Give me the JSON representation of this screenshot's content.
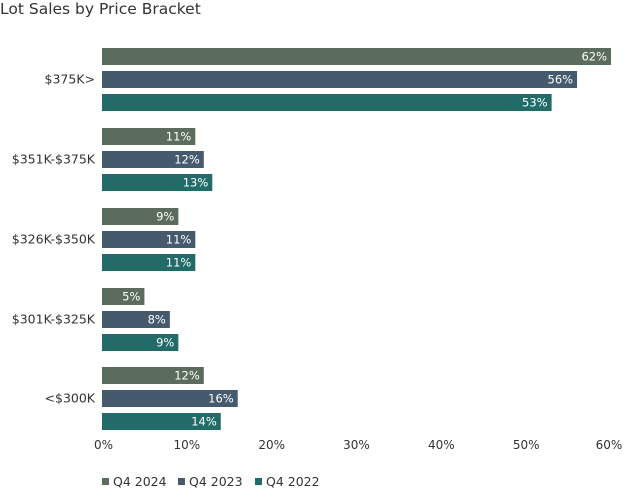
{
  "chart_data": {
    "type": "bar",
    "orientation": "horizontal",
    "title": "Lot Sales by Price Bracket",
    "xlabel": "",
    "ylabel": "",
    "xlim": [
      0,
      0.6
    ],
    "x_ticks": [
      0,
      0.1,
      0.2,
      0.3,
      0.4,
      0.5,
      0.6
    ],
    "x_tick_labels": [
      "0%",
      "10%",
      "20%",
      "30%",
      "40%",
      "50%",
      "60%"
    ],
    "categories": [
      "$375K>",
      "$351K-$375K",
      "$326K-$350K",
      "$301K-$325K",
      "<$300K"
    ],
    "series": [
      {
        "name": "Q4 2024",
        "color": "#5b6b5c",
        "values": [
          0.62,
          0.11,
          0.09,
          0.05,
          0.12
        ],
        "labels": [
          "62%",
          "11%",
          "9%",
          "5%",
          "12%"
        ]
      },
      {
        "name": "Q4 2023",
        "color": "#465a6e",
        "values": [
          0.56,
          0.12,
          0.11,
          0.08,
          0.16
        ],
        "labels": [
          "56%",
          "12%",
          "11%",
          "8%",
          "16%"
        ]
      },
      {
        "name": "Q4 2022",
        "color": "#226b69",
        "values": [
          0.53,
          0.13,
          0.11,
          0.09,
          0.14
        ],
        "labels": [
          "53%",
          "13%",
          "11%",
          "9%",
          "14%"
        ]
      }
    ],
    "grid": false,
    "legend_position": "bottom-left"
  }
}
